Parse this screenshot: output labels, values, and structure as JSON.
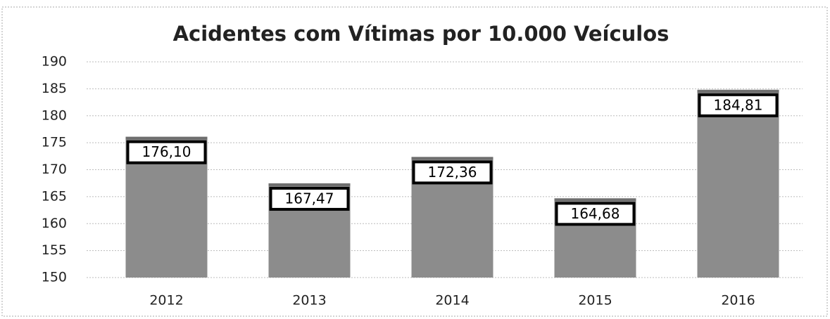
{
  "chart_data": {
    "type": "bar",
    "title": "Acidentes com Vítimas por 10.000 Veículos",
    "categories": [
      "2012",
      "2013",
      "2014",
      "2015",
      "2016"
    ],
    "values": [
      176.1,
      167.47,
      172.36,
      164.68,
      184.81
    ],
    "value_labels": [
      "176,10",
      "167,47",
      "172,36",
      "164,68",
      "184,81"
    ],
    "color": "#8c8c8c",
    "ylim": [
      150,
      190
    ],
    "yticks": [
      150,
      155,
      160,
      165,
      170,
      175,
      180,
      185,
      190
    ],
    "grid": true
  }
}
